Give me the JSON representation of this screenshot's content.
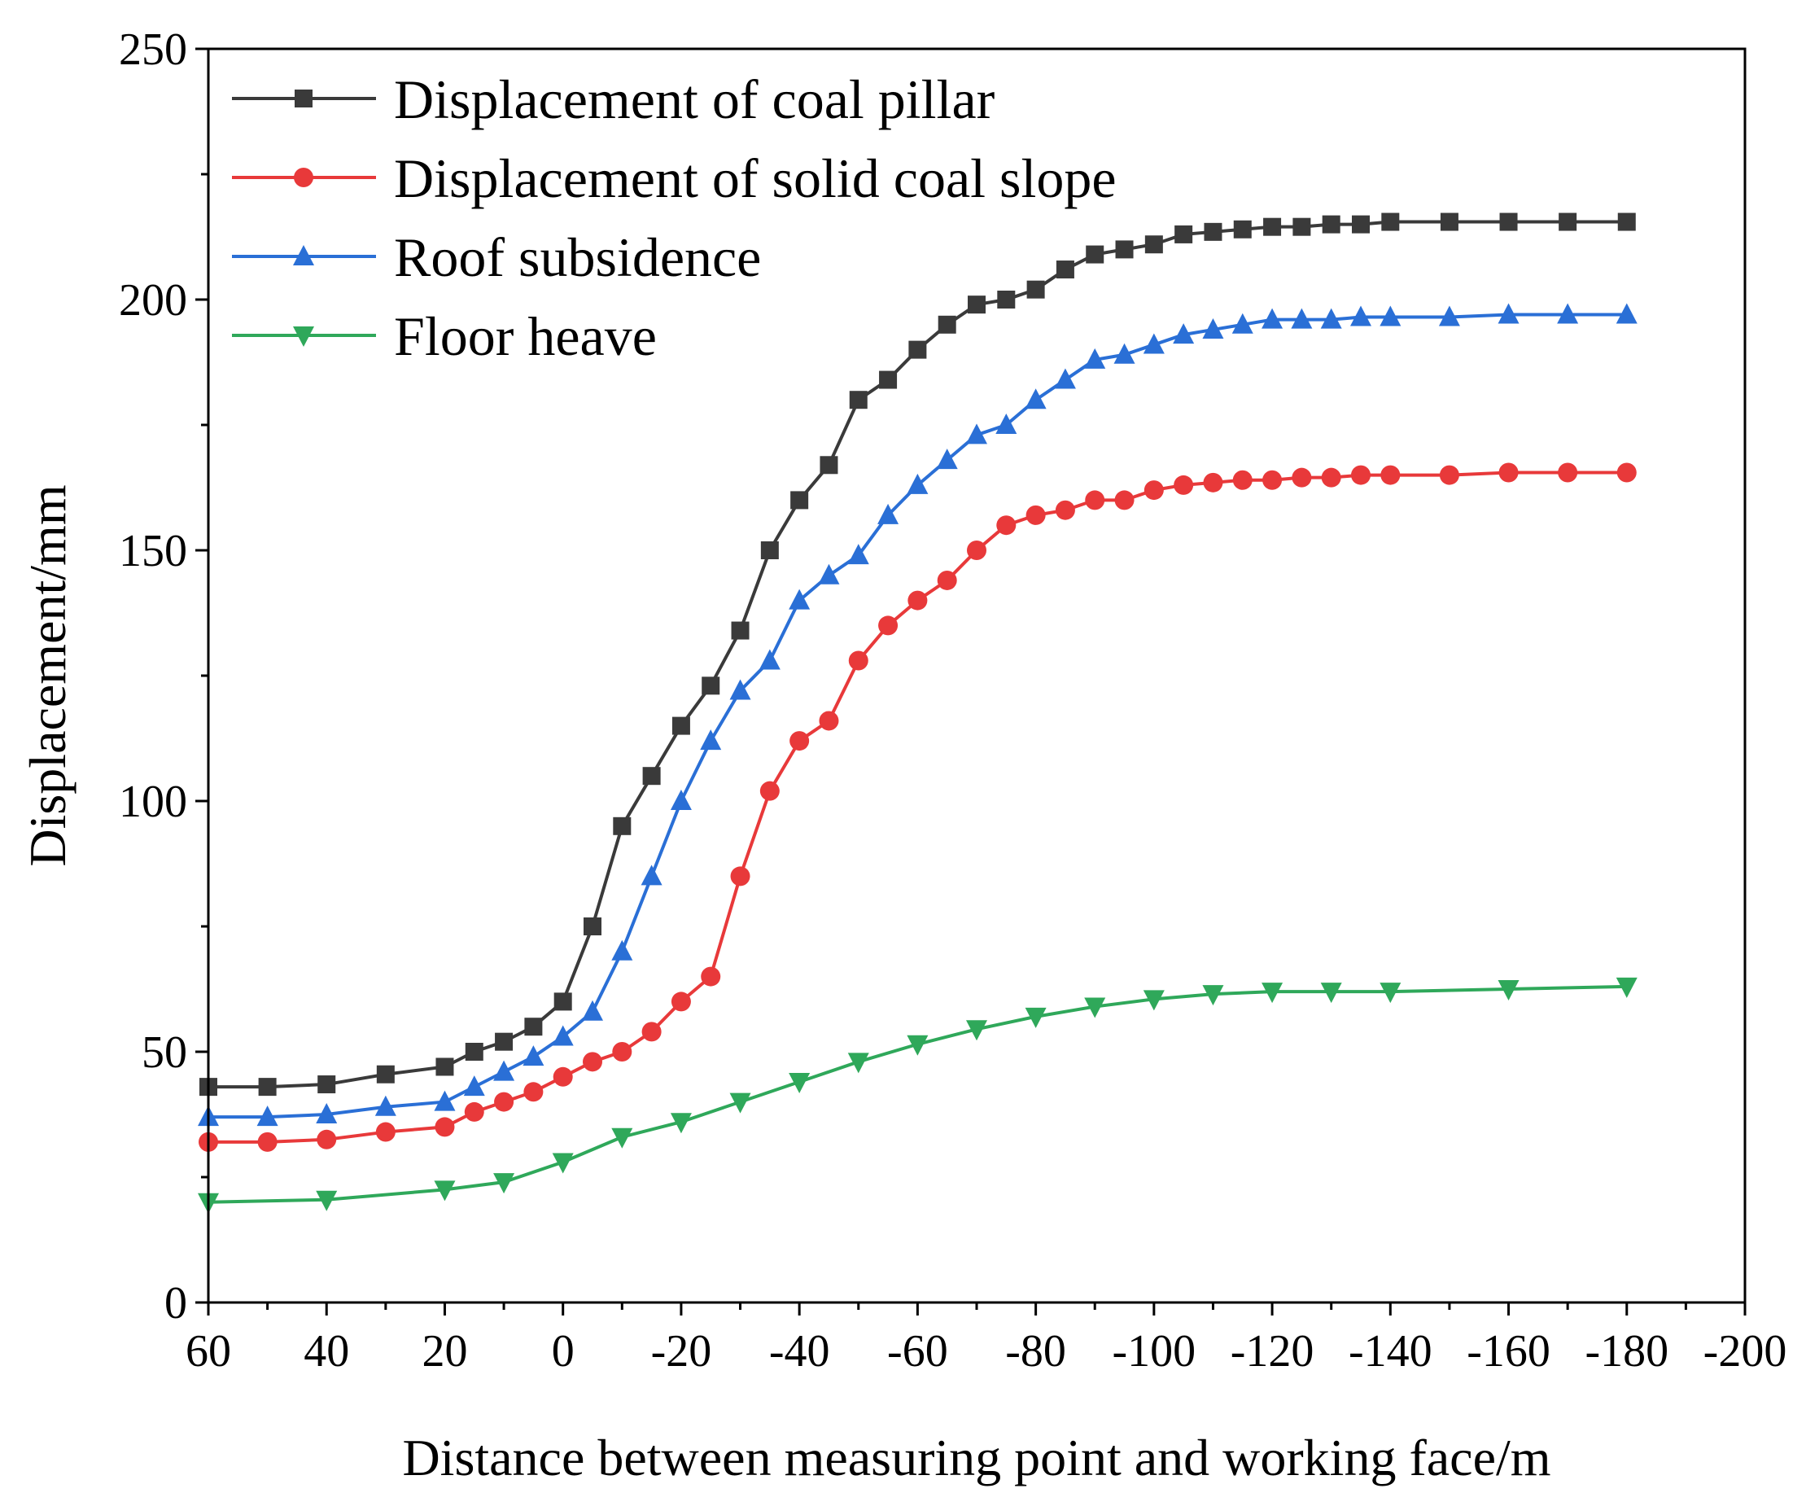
{
  "chart_data": {
    "type": "line",
    "title": "",
    "xlabel": "Distance between measuring point and working face/m",
    "ylabel": "Displacement/mm",
    "xlim": [
      60,
      -200
    ],
    "ylim": [
      0,
      250
    ],
    "x_ticks": [
      60,
      40,
      20,
      0,
      -20,
      -40,
      -60,
      -80,
      -100,
      -120,
      -140,
      -160,
      -180,
      -200
    ],
    "y_ticks": [
      0,
      50,
      100,
      150,
      200,
      250
    ],
    "grid": false,
    "legend_position": "top-left",
    "series": [
      {
        "name": "Displacement of coal pillar",
        "color": "#3a3a3a",
        "marker": "square",
        "x": [
          60,
          50,
          40,
          30,
          20,
          15,
          10,
          5,
          0,
          -5,
          -10,
          -15,
          -20,
          -25,
          -30,
          -35,
          -40,
          -45,
          -50,
          -55,
          -60,
          -65,
          -70,
          -75,
          -80,
          -85,
          -90,
          -95,
          -100,
          -105,
          -110,
          -115,
          -120,
          -125,
          -130,
          -135,
          -140,
          -150,
          -160,
          -170,
          -180
        ],
        "values": [
          43,
          43,
          43.5,
          45.5,
          47,
          50,
          52,
          55,
          60,
          75,
          95,
          105,
          115,
          123,
          134,
          150,
          160,
          167,
          180,
          184,
          190,
          195,
          199,
          200,
          202,
          206,
          209,
          210,
          211,
          213,
          213.5,
          214,
          214.5,
          214.5,
          215,
          215,
          215.5,
          215.5,
          215.5,
          215.5,
          215.5
        ]
      },
      {
        "name": "Displacement of solid coal slope",
        "color": "#e8393a",
        "marker": "circle",
        "x": [
          60,
          50,
          40,
          30,
          20,
          15,
          10,
          5,
          0,
          -5,
          -10,
          -15,
          -20,
          -25,
          -30,
          -35,
          -40,
          -45,
          -50,
          -55,
          -60,
          -65,
          -70,
          -75,
          -80,
          -85,
          -90,
          -95,
          -100,
          -105,
          -110,
          -115,
          -120,
          -125,
          -130,
          -135,
          -140,
          -150,
          -160,
          -170,
          -180
        ],
        "values": [
          32,
          32,
          32.5,
          34,
          35,
          38,
          40,
          42,
          45,
          48,
          50,
          54,
          60,
          65,
          85,
          102,
          112,
          116,
          128,
          135,
          140,
          144,
          150,
          155,
          157,
          158,
          160,
          160,
          162,
          163,
          163.5,
          164,
          164,
          164.5,
          164.5,
          165,
          165,
          165,
          165.5,
          165.5,
          165.5
        ]
      },
      {
        "name": "Roof subsidence",
        "color": "#2a6fd6",
        "marker": "triangle-up",
        "x": [
          60,
          50,
          40,
          30,
          20,
          15,
          10,
          5,
          0,
          -5,
          -10,
          -15,
          -20,
          -25,
          -30,
          -35,
          -40,
          -45,
          -50,
          -55,
          -60,
          -65,
          -70,
          -75,
          -80,
          -85,
          -90,
          -95,
          -100,
          -105,
          -110,
          -115,
          -120,
          -125,
          -130,
          -135,
          -140,
          -150,
          -160,
          -170,
          -180
        ],
        "values": [
          37,
          37,
          37.5,
          39,
          40,
          43,
          46,
          49,
          53,
          58,
          70,
          85,
          100,
          112,
          122,
          128,
          140,
          145,
          149,
          157,
          163,
          168,
          173,
          175,
          180,
          184,
          188,
          189,
          191,
          193,
          194,
          195,
          196,
          196,
          196,
          196.5,
          196.5,
          196.5,
          197,
          197,
          197
        ]
      },
      {
        "name": "Floor heave",
        "color": "#2fa85a",
        "marker": "triangle-down",
        "x": [
          60,
          40,
          20,
          10,
          0,
          -10,
          -20,
          -30,
          -40,
          -50,
          -60,
          -70,
          -80,
          -90,
          -100,
          -110,
          -120,
          -130,
          -140,
          -160,
          -180
        ],
        "values": [
          20,
          20.5,
          22.5,
          24,
          28,
          33,
          36,
          40,
          44,
          48,
          51.5,
          54.5,
          57,
          59,
          60.5,
          61.5,
          62,
          62,
          62,
          62.5,
          63
        ]
      }
    ]
  }
}
